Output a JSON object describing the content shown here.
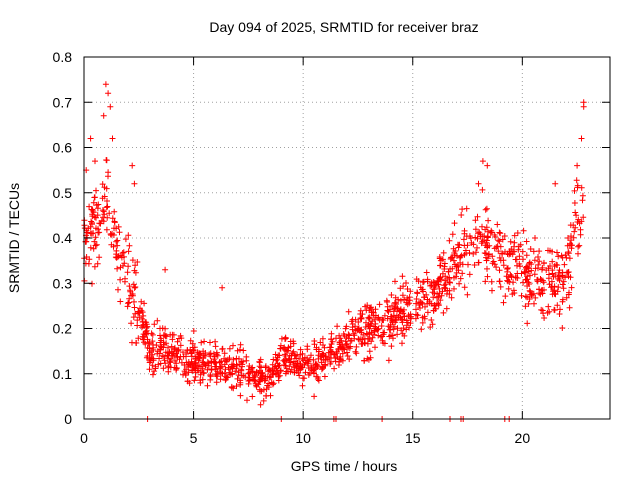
{
  "chart_data": {
    "type": "scatter",
    "title": "Day 094 of 2025, SRMTID for receiver braz",
    "xlabel": "GPS time / hours",
    "ylabel": "SRMTID / TECUs",
    "xlim": [
      0,
      24
    ],
    "ylim": [
      0,
      0.8
    ],
    "x_ticks": [
      0,
      5,
      10,
      15,
      20
    ],
    "x_tick_labels": [
      "0",
      "5",
      "10",
      "15",
      "20"
    ],
    "y_ticks": [
      0,
      0.1,
      0.2,
      0.3,
      0.4,
      0.5,
      0.6,
      0.7,
      0.8
    ],
    "y_tick_labels": [
      "0",
      "0.1",
      "0.2",
      "0.3",
      "0.4",
      "0.5",
      "0.6",
      "0.7",
      "0.8"
    ],
    "grid": true,
    "marker": "+",
    "color": "#ff0000",
    "series": [
      {
        "name": "SRMTID",
        "trend": [
          [
            0.0,
            0.4
          ],
          [
            0.5,
            0.42
          ],
          [
            1.0,
            0.5
          ],
          [
            1.5,
            0.38
          ],
          [
            2.0,
            0.3
          ],
          [
            2.5,
            0.25
          ],
          [
            3.0,
            0.16
          ],
          [
            4.0,
            0.15
          ],
          [
            5.0,
            0.13
          ],
          [
            6.0,
            0.12
          ],
          [
            7.0,
            0.11
          ],
          [
            8.0,
            0.09
          ],
          [
            8.5,
            0.09
          ],
          [
            9.0,
            0.14
          ],
          [
            10.0,
            0.12
          ],
          [
            11.0,
            0.13
          ],
          [
            12.0,
            0.17
          ],
          [
            13.0,
            0.2
          ],
          [
            14.0,
            0.22
          ],
          [
            15.0,
            0.24
          ],
          [
            16.0,
            0.28
          ],
          [
            17.0,
            0.35
          ],
          [
            18.0,
            0.4
          ],
          [
            19.0,
            0.36
          ],
          [
            20.0,
            0.33
          ],
          [
            21.0,
            0.3
          ],
          [
            22.0,
            0.3
          ],
          [
            22.5,
            0.45
          ]
        ],
        "highlights": [
          [
            1.0,
            0.74
          ],
          [
            1.1,
            0.72
          ],
          [
            1.2,
            0.69
          ],
          [
            0.9,
            0.67
          ],
          [
            1.3,
            0.62
          ],
          [
            0.3,
            0.62
          ],
          [
            0.5,
            0.57
          ],
          [
            2.2,
            0.56
          ],
          [
            2.3,
            0.52
          ],
          [
            0.1,
            0.55
          ],
          [
            22.8,
            0.69
          ],
          [
            22.8,
            0.7
          ],
          [
            22.7,
            0.62
          ],
          [
            22.5,
            0.56
          ],
          [
            18.2,
            0.57
          ],
          [
            18.4,
            0.56
          ],
          [
            18.0,
            0.52
          ],
          [
            21.5,
            0.52
          ],
          [
            3.7,
            0.33
          ],
          [
            6.3,
            0.29
          ],
          [
            9.2,
            0.18
          ],
          [
            10.5,
            0.05
          ],
          [
            8.2,
            0.04
          ]
        ],
        "zero_points": [
          2.9,
          9.0,
          11.4,
          11.5,
          13.6,
          16.7,
          17.2,
          17.3,
          19.2,
          19.4
        ]
      }
    ]
  }
}
